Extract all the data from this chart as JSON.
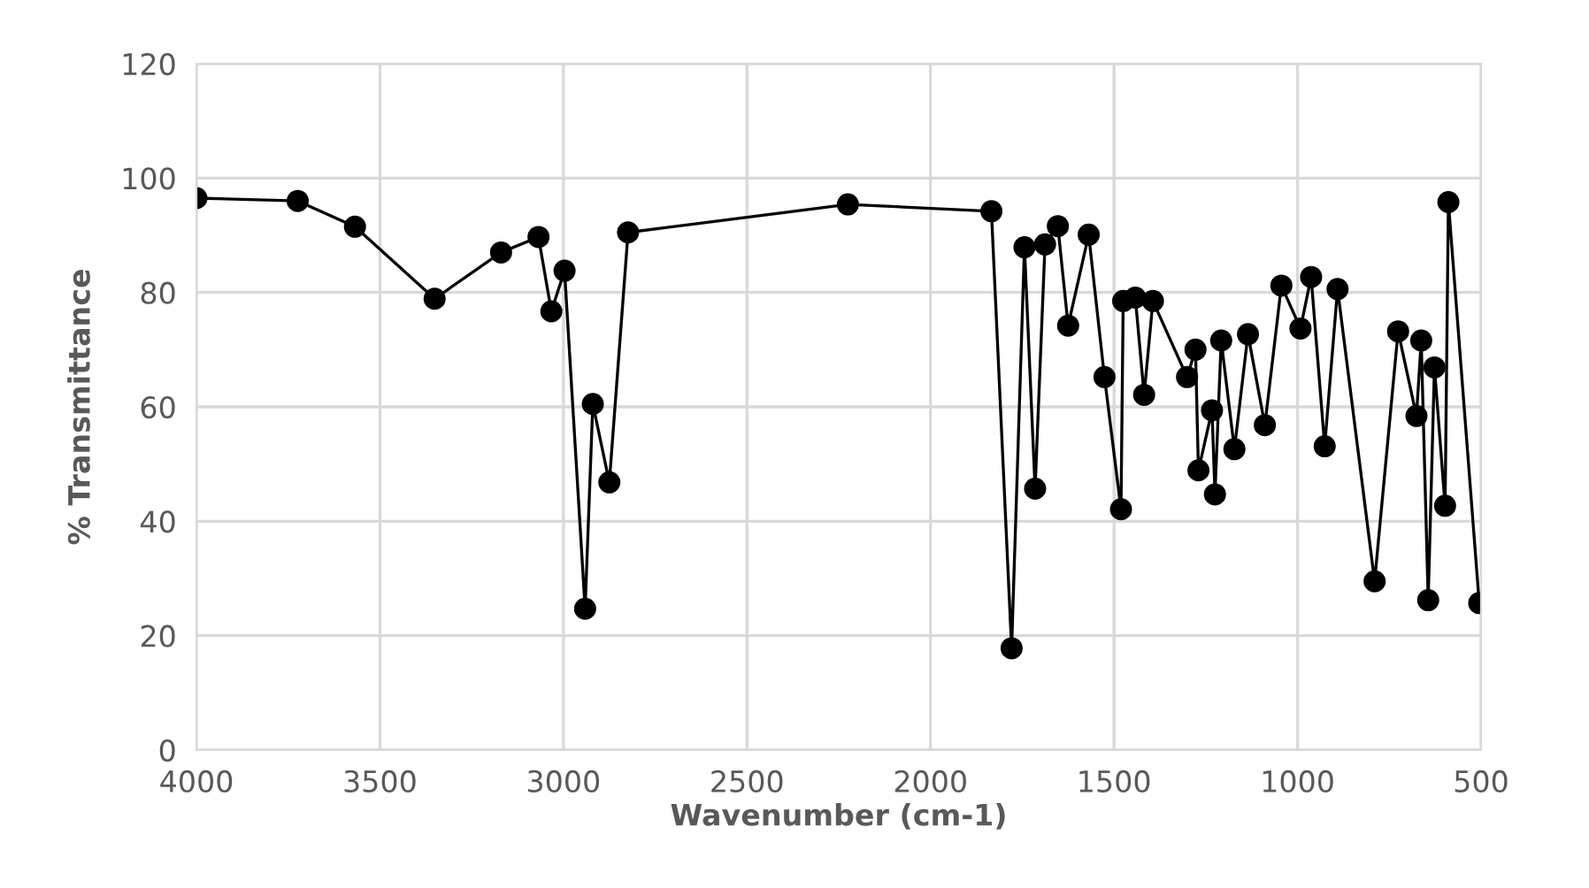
{
  "chart_data": {
    "type": "line",
    "xlabel": "Wavenumber (cm-1)",
    "ylabel": "% Transmittance",
    "x": [
      4000,
      3724,
      3568,
      3351,
      3170,
      3068,
      3033,
      2997,
      2941,
      2920,
      2875,
      2824,
      2225,
      1834,
      1779,
      1744,
      1715,
      1688,
      1653,
      1625,
      1569,
      1526,
      1481,
      1475,
      1442,
      1418,
      1394,
      1301,
      1278,
      1270,
      1233,
      1225,
      1208,
      1172,
      1135,
      1089,
      1044,
      992,
      963,
      926,
      891,
      790,
      726,
      676,
      663,
      644,
      627,
      598,
      589,
      505
    ],
    "series": [
      {
        "color": "#000000",
        "values": [
          96.5,
          96,
          91.5,
          78.9,
          87,
          89.7,
          76.7,
          83.8,
          24.7,
          60.5,
          46.8,
          90.5,
          95.4,
          94.2,
          17.8,
          87.9,
          45.7,
          88.4,
          91.6,
          74.2,
          90.1,
          65.2,
          42.1,
          78.5,
          79.1,
          62.1,
          78.5,
          65.2,
          70,
          48.9,
          59.4,
          44.7,
          71.6,
          52.6,
          72.7,
          56.8,
          81.2,
          73.7,
          82.7,
          53.1,
          80.6,
          29.5,
          73.2,
          58.4,
          71.6,
          26.2,
          66.9,
          42.7,
          95.8,
          25.7
        ]
      }
    ],
    "xlim": [
      4000,
      500
    ],
    "xticks": [
      4000,
      3500,
      3000,
      2500,
      2000,
      1500,
      1000,
      500
    ],
    "ylim": [
      0,
      120
    ],
    "yticks": [
      0,
      20,
      40,
      60,
      80,
      100,
      120
    ],
    "grid": true,
    "marker": "circle",
    "line_style": "solid",
    "legend": false
  }
}
